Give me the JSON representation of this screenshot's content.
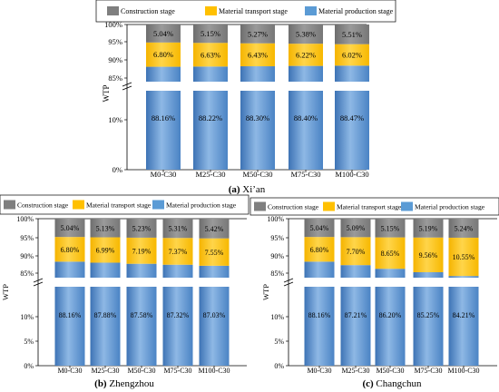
{
  "chart_data": [
    {
      "type": "bar",
      "stacked": true,
      "caption_letter": "(a)",
      "caption_city": "Xi’an",
      "ylabel": "WTP",
      "categories": [
        "M0-C30",
        "M25-C30",
        "M50-C30",
        "M75-C30",
        "M100-C30"
      ],
      "series": [
        {
          "name": "Material production stage",
          "values": [
            88.16,
            88.22,
            88.3,
            88.4,
            88.47
          ]
        },
        {
          "name": "Material transport stage",
          "values": [
            6.8,
            6.63,
            6.43,
            6.22,
            6.02
          ]
        },
        {
          "name": "Construction stage",
          "values": [
            5.04,
            5.15,
            5.27,
            5.38,
            5.51
          ]
        }
      ],
      "yticks_lower": [
        "0%",
        "10%"
      ],
      "yticks_upper": [
        "85%",
        "90%",
        "95%",
        "100%"
      ],
      "axis_break": true,
      "legend_position": "top"
    },
    {
      "type": "bar",
      "stacked": true,
      "caption_letter": "(b)",
      "caption_city": "Zhengzhou",
      "ylabel": "WTP",
      "categories": [
        "M0-C30",
        "M25-C30",
        "M50-C30",
        "M75-C30",
        "M100-C30"
      ],
      "series": [
        {
          "name": "Material production stage",
          "values": [
            88.16,
            87.88,
            87.58,
            87.32,
            87.03
          ]
        },
        {
          "name": "Material transport stage",
          "values": [
            6.8,
            6.99,
            7.19,
            7.37,
            7.55
          ]
        },
        {
          "name": "Construction stage",
          "values": [
            5.04,
            5.13,
            5.23,
            5.31,
            5.42
          ]
        }
      ],
      "yticks_lower": [
        "0%",
        "5%",
        "10%"
      ],
      "yticks_upper": [
        "85%",
        "90%",
        "95%",
        "100%"
      ],
      "axis_break": true,
      "legend_position": "top"
    },
    {
      "type": "bar",
      "stacked": true,
      "caption_letter": "(c)",
      "caption_city": "Changchun",
      "ylabel": "WTP",
      "categories": [
        "M0-C30",
        "M25-C30",
        "M50-C30",
        "M75-C30",
        "M100-C30"
      ],
      "series": [
        {
          "name": "Material production stage",
          "values": [
            88.16,
            87.21,
            86.2,
            85.25,
            84.21
          ]
        },
        {
          "name": "Material transport stage",
          "values": [
            6.8,
            7.7,
            8.65,
            9.56,
            10.55
          ]
        },
        {
          "name": "Construction stage",
          "values": [
            5.04,
            5.09,
            5.15,
            5.19,
            5.24
          ]
        }
      ],
      "yticks_lower": [
        "0%",
        "5%",
        "10%"
      ],
      "yticks_upper": [
        "85%",
        "90%",
        "95%",
        "100%"
      ],
      "axis_break": true,
      "legend_position": "top"
    }
  ],
  "colors": {
    "construction": "#7f7f7f",
    "transport": "#ffc000",
    "production": "#5b9bd5",
    "production_dark": "#3d73b5",
    "production_light": "#8eb8e5"
  }
}
